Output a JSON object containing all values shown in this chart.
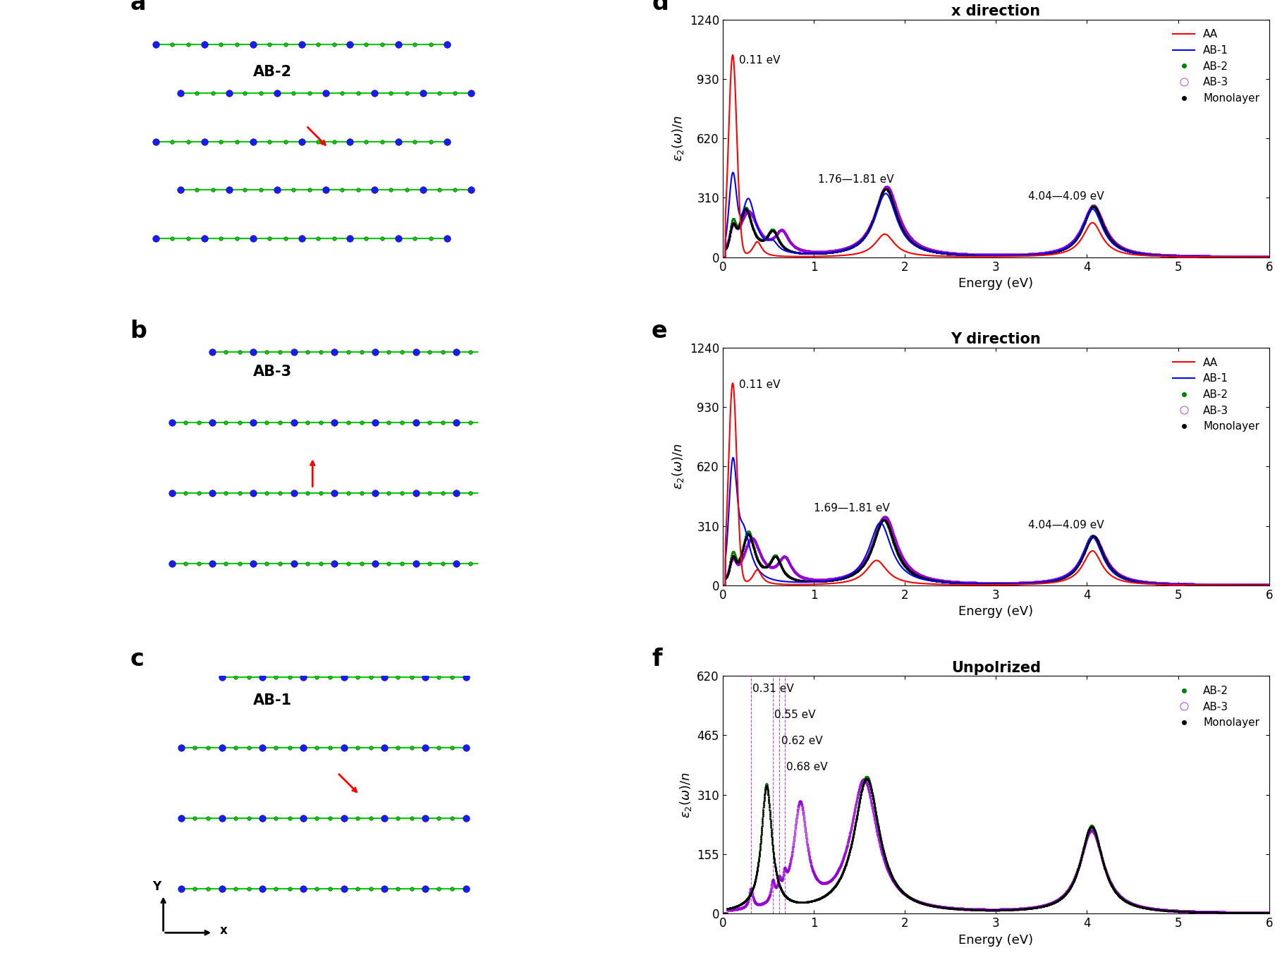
{
  "panel_labels": [
    "a",
    "b",
    "c",
    "d",
    "e",
    "f"
  ],
  "panel_label_fontsize": 24,
  "plot_titles": [
    "x direction",
    "Y direction",
    "Unpolrized"
  ],
  "title_fontsize": 15,
  "xlabel": "Energy (eV)",
  "ylabel_de": "ε₂(ω)/n",
  "xlim": [
    0,
    6
  ],
  "ylim_de": [
    0,
    1240
  ],
  "ylim_f": [
    0,
    620
  ],
  "yticks_de": [
    0,
    310,
    620,
    930,
    1240
  ],
  "yticks_f": [
    0,
    155,
    310,
    465,
    620
  ],
  "xticks": [
    0,
    1,
    2,
    3,
    4,
    5,
    6
  ],
  "axis_fontsize": 13,
  "tick_fontsize": 12,
  "legend_fontsize": 11,
  "annot_fontsize": 11,
  "colors": {
    "AA": "#ff0000",
    "AB1": "#0000ff",
    "AB2": "#008000",
    "AB3": "#9400d3",
    "Monolayer": "#000000"
  },
  "node_color_large": "#1a1aff",
  "node_color_small": "#00cc00",
  "bg_color": "#ffffff"
}
